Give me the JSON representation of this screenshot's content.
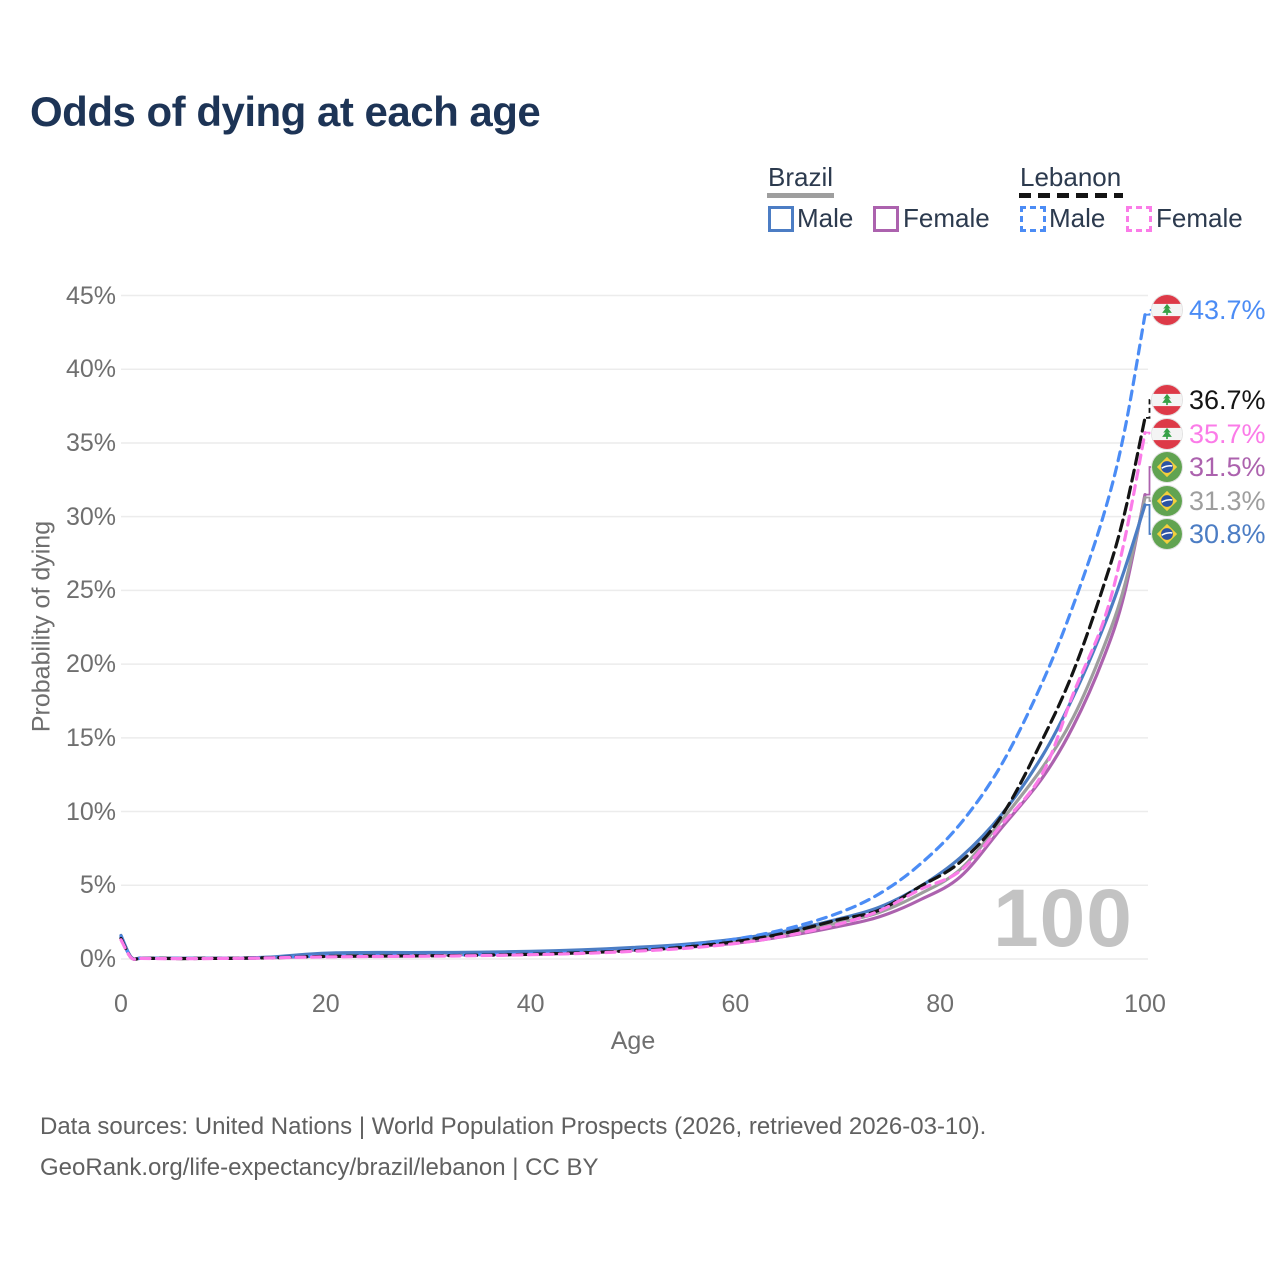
{
  "title": "Odds of dying at each age",
  "legend": {
    "groups": [
      {
        "country": "Brazil",
        "items": [
          {
            "label": "Male"
          },
          {
            "label": "Female"
          }
        ]
      },
      {
        "country": "Lebanon",
        "items": [
          {
            "label": "Male"
          },
          {
            "label": "Female"
          }
        ]
      }
    ]
  },
  "watermark": "100",
  "footer": {
    "line1": "Data sources: United Nations | World Population Prospects (2026, retrieved 2026-03-10).",
    "line2": "GeoRank.org/life-expectancy/brazil/lebanon | CC BY"
  },
  "chart_data": {
    "type": "line",
    "title": "Odds of dying at each age",
    "xlabel": "Age",
    "ylabel": "Probability of dying",
    "xlim": [
      0,
      100
    ],
    "ylim": [
      0,
      45
    ],
    "grid": "horizontal-only",
    "grid_color": "#ececec",
    "legend_position": "top-right",
    "x_axis": {
      "label": "Age",
      "ticks": [
        {
          "value": 0,
          "label": "0"
        },
        {
          "value": 20,
          "label": "20"
        },
        {
          "value": 40,
          "label": "40"
        },
        {
          "value": 60,
          "label": "60"
        },
        {
          "value": 80,
          "label": "80"
        },
        {
          "value": 100,
          "label": "100"
        }
      ]
    },
    "y_axis": {
      "label": "Probability of dying",
      "ticks": [
        {
          "value": 0,
          "label": "0%"
        },
        {
          "value": 5,
          "label": "5%"
        },
        {
          "value": 10,
          "label": "10%"
        },
        {
          "value": 15,
          "label": "15%"
        },
        {
          "value": 20,
          "label": "20%"
        },
        {
          "value": 25,
          "label": "25%"
        },
        {
          "value": 30,
          "label": "30%"
        },
        {
          "value": 35,
          "label": "35%"
        },
        {
          "value": 40,
          "label": "40%"
        },
        {
          "value": 45,
          "label": "45%"
        }
      ]
    },
    "ages": [
      0,
      1,
      2,
      4,
      6,
      8,
      10,
      12,
      15,
      18,
      21,
      25,
      30,
      35,
      40,
      45,
      50,
      55,
      60,
      65,
      70,
      74,
      78,
      82,
      86,
      90,
      93,
      96,
      98,
      100
    ],
    "series": [
      {
        "id": "lebanon-male",
        "country": "Lebanon",
        "sex": "Male",
        "color": "#4b8cf5",
        "dashed": true,
        "end_value": 43.7,
        "end_label": "43.7%",
        "values": [
          1.5,
          0.1,
          0.05,
          0.04,
          0.04,
          0.04,
          0.05,
          0.06,
          0.1,
          0.17,
          0.21,
          0.23,
          0.25,
          0.29,
          0.35,
          0.46,
          0.63,
          0.9,
          1.35,
          2.05,
          3.1,
          4.4,
          6.4,
          9.2,
          13.2,
          18.8,
          24.0,
          30.2,
          35.8,
          43.7
        ]
      },
      {
        "id": "lebanon-both",
        "country": "Lebanon",
        "sex": "Both sexes",
        "color": "#141414",
        "dashed": true,
        "end_value": 36.7,
        "end_label": "36.7%",
        "values": [
          1.4,
          0.09,
          0.05,
          0.04,
          0.03,
          0.04,
          0.04,
          0.06,
          0.09,
          0.15,
          0.18,
          0.2,
          0.22,
          0.26,
          0.32,
          0.42,
          0.57,
          0.8,
          1.18,
          1.78,
          2.65,
          3.3,
          4.9,
          6.6,
          9.7,
          14.9,
          19.5,
          25.4,
          30.2,
          36.7
        ]
      },
      {
        "id": "lebanon-female",
        "country": "Lebanon",
        "sex": "Female",
        "color": "#fb7be8",
        "dashed": true,
        "end_value": 35.7,
        "end_label": "35.7%",
        "values": [
          1.3,
          0.08,
          0.04,
          0.03,
          0.03,
          0.03,
          0.04,
          0.05,
          0.08,
          0.12,
          0.15,
          0.17,
          0.19,
          0.23,
          0.29,
          0.38,
          0.52,
          0.72,
          1.05,
          1.58,
          2.35,
          3.25,
          4.7,
          6.0,
          9.1,
          12.6,
          18.0,
          23.0,
          28.4,
          35.7
        ]
      },
      {
        "id": "brazil-female",
        "country": "Brazil",
        "sex": "Female",
        "color": "#ac62ae",
        "dashed": false,
        "end_value": 31.5,
        "end_label": "31.5%",
        "values": [
          1.4,
          0.1,
          0.05,
          0.04,
          0.04,
          0.04,
          0.04,
          0.05,
          0.09,
          0.16,
          0.2,
          0.23,
          0.27,
          0.31,
          0.38,
          0.47,
          0.6,
          0.78,
          1.07,
          1.55,
          2.2,
          2.85,
          4.0,
          5.6,
          8.9,
          12.3,
          15.8,
          20.5,
          24.8,
          31.5
        ]
      },
      {
        "id": "brazil-both",
        "country": "Brazil",
        "sex": "Both sexes",
        "color": "#9e9e9e",
        "dashed": false,
        "end_value": 31.3,
        "end_label": "31.3%",
        "values": [
          1.5,
          0.11,
          0.06,
          0.05,
          0.04,
          0.04,
          0.05,
          0.06,
          0.12,
          0.25,
          0.33,
          0.35,
          0.36,
          0.39,
          0.45,
          0.54,
          0.69,
          0.89,
          1.2,
          1.72,
          2.45,
          3.15,
          4.4,
          6.1,
          9.4,
          13.0,
          16.4,
          21.2,
          25.3,
          31.3
        ]
      },
      {
        "id": "brazil-male",
        "country": "Brazil",
        "sex": "Male",
        "color": "#4c7dc4",
        "dashed": false,
        "end_value": 30.8,
        "end_label": "30.8%",
        "values": [
          1.6,
          0.12,
          0.07,
          0.05,
          0.04,
          0.04,
          0.05,
          0.07,
          0.15,
          0.32,
          0.42,
          0.44,
          0.44,
          0.46,
          0.52,
          0.62,
          0.78,
          1.0,
          1.35,
          1.9,
          2.7,
          3.5,
          4.9,
          6.9,
          9.8,
          13.8,
          17.8,
          22.6,
          26.4,
          30.8
        ]
      }
    ]
  }
}
